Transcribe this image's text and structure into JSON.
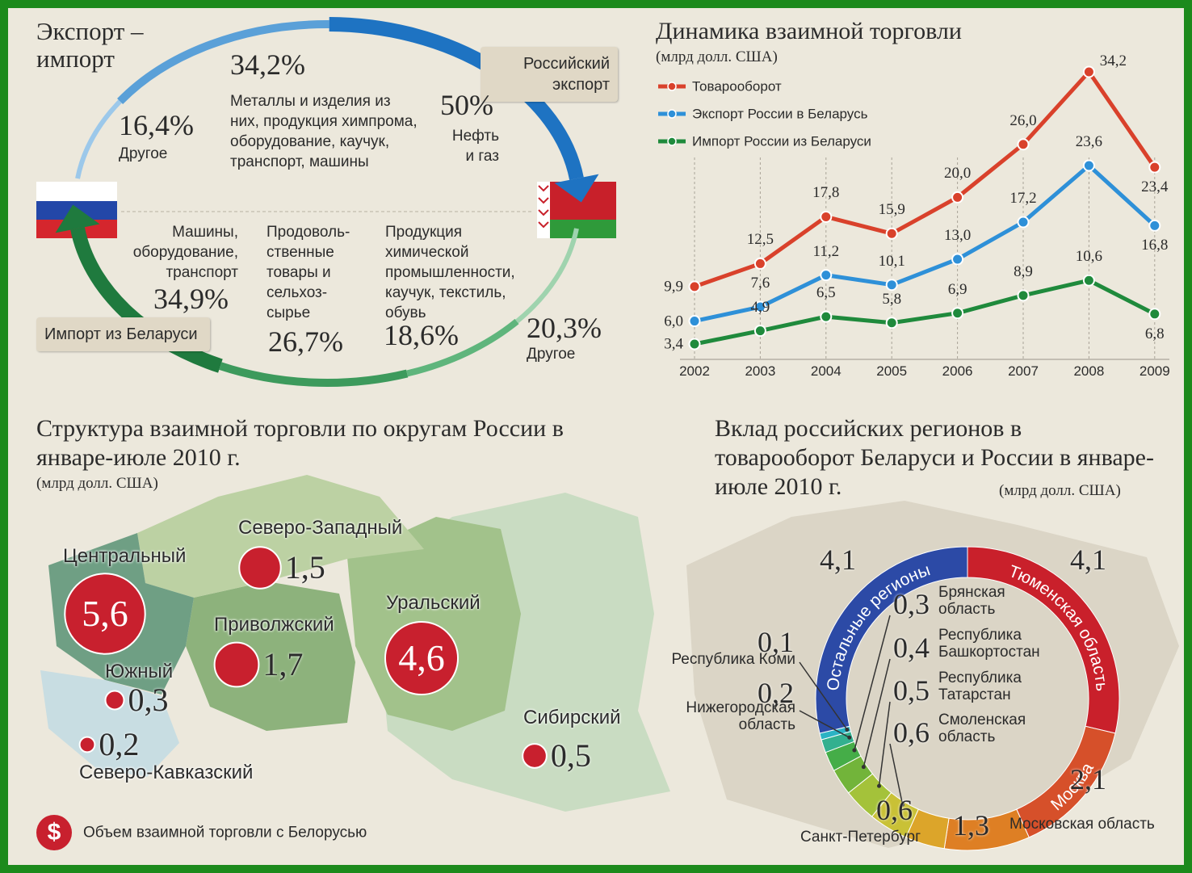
{
  "chart_data": [
    {
      "type": "flow",
      "title": "Экспорт – импорт",
      "series": [
        {
          "name": "Российский экспорт",
          "categories": [
            "Другое",
            "Металлы и изделия из них, продукция химпрома, оборудование, каучук, транспорт, машины",
            "Нефть и газ"
          ],
          "values": [
            16.4,
            34.2,
            50
          ],
          "value_labels": [
            "16,4%",
            "34,2%",
            "50%"
          ],
          "colors": [
            "#9cc8ea",
            "#5aa0d8",
            "#1e73c2"
          ]
        },
        {
          "name": "Импорт из Беларуси",
          "categories": [
            "Машины, оборудование, транспорт",
            "Продоволь-ственные товары и сельхоз-сырье",
            "Продукция химической промышленности, каучук, текстиль, обувь",
            "Другое"
          ],
          "values": [
            34.9,
            26.7,
            18.6,
            20.3
          ],
          "value_labels": [
            "34,9%",
            "26,7%",
            "18,6%",
            "20,3%"
          ],
          "colors": [
            "#1f7a3e",
            "#3d9a5c",
            "#5fb57c",
            "#9fd3ae"
          ]
        }
      ]
    },
    {
      "type": "line",
      "title": "Динамика взаимной торговли",
      "subtitle": "(млрд долл. США)",
      "categories": [
        "2002",
        "2003",
        "2004",
        "2005",
        "2006",
        "2007",
        "2008",
        "2009"
      ],
      "grid": true,
      "series": [
        {
          "name": "Товарооборот",
          "color": "#d9412b",
          "values": [
            9.9,
            12.5,
            17.8,
            15.9,
            20.0,
            26.0,
            34.2,
            23.4
          ],
          "value_labels": [
            "9,9",
            "12,5",
            "17,8",
            "15,9",
            "20,0",
            "26,0",
            "34,2",
            "23,4"
          ]
        },
        {
          "name": "Экспорт России в Беларусь",
          "color": "#2e90d8",
          "values": [
            6.0,
            7.6,
            11.2,
            10.1,
            13.0,
            17.2,
            23.6,
            16.8
          ],
          "value_labels": [
            "6,0",
            "7,6",
            "11,2",
            "10,1",
            "13,0",
            "17,2",
            "23,6",
            "16,8"
          ]
        },
        {
          "name": "Импорт России из Беларуси",
          "color": "#1f8a3c",
          "values": [
            3.4,
            4.9,
            6.5,
            5.8,
            6.9,
            8.9,
            10.6,
            6.8
          ],
          "value_labels": [
            "3,4",
            "4,9",
            "6,5",
            "5,8",
            "6,9",
            "8,9",
            "10,6",
            "6,8"
          ]
        }
      ]
    },
    {
      "type": "bubble",
      "title": "Структура взаимной торговли по округам России в январе-июле 2010 г.",
      "subtitle": "(млрд долл. США)",
      "legend": "Объем взаимной торговли с Белорусью",
      "legend_symbol": "$",
      "color": "#c8202e",
      "categories": [
        "Центральный",
        "Северо-Западный",
        "Приволжский",
        "Уральский",
        "Южный",
        "Северо-Кавказский",
        "Сибирский"
      ],
      "values": [
        5.6,
        1.5,
        1.7,
        4.6,
        0.3,
        0.2,
        0.5
      ],
      "value_labels": [
        "5,6",
        "1,5",
        "1,7",
        "4,6",
        "0,3",
        "0,2",
        "0,5"
      ]
    },
    {
      "type": "donut",
      "title": "Вклад российских регионов в товарооборот Беларуси и России в январе-июле 2010 г.",
      "subtitle": "(млрд долл. США)",
      "categories": [
        "Тюменская область",
        "Москва",
        "Московская область",
        "Санкт-Петербург",
        "Смоленская область",
        "Республика Татарстан",
        "Республика Башкортостан",
        "Брянская область",
        "Нижегородская область",
        "Республика Коми",
        "Остальные регионы"
      ],
      "values": [
        4.1,
        2.1,
        1.3,
        0.6,
        0.6,
        0.5,
        0.4,
        0.3,
        0.2,
        0.1,
        4.1
      ],
      "value_labels": [
        "4,1",
        "2,1",
        "1,3",
        "0,6",
        "0,6",
        "0,5",
        "0,4",
        "0,3",
        "0,2",
        "0,1",
        "4,1"
      ],
      "colors": [
        "#c9202b",
        "#d6502a",
        "#de7f24",
        "#dca52a",
        "#c9c136",
        "#a4c23a",
        "#72b43a",
        "#45ad48",
        "#33b08f",
        "#2bb3c4",
        "#2c4aa6"
      ]
    }
  ]
}
